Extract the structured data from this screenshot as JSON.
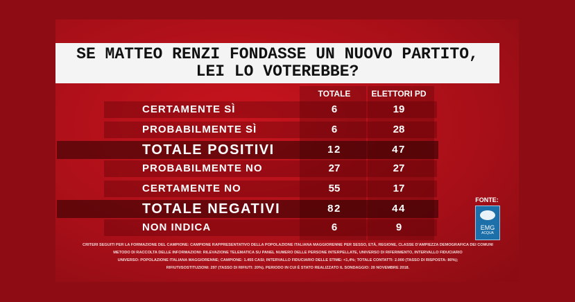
{
  "title": {
    "line1": "SE MATTEO RENZI FONDASSE UN NUOVO PARTITO,",
    "line2": "LEI LO VOTEREBBE?"
  },
  "table": {
    "header": [
      "TOTALE",
      "ELETTORI PD"
    ],
    "rows": [
      [
        "CERTAMENTE SÌ",
        6,
        19
      ],
      [
        "PROBABILMENTE SÌ",
        6,
        28
      ],
      [
        "TOTALE POSITIVI",
        12,
        47
      ],
      [
        "PROBABILMENTE NO",
        27,
        27
      ],
      [
        "CERTAMENTE NO",
        55,
        17
      ],
      [
        "TOTALE NEGATIVI",
        82,
        44
      ],
      [
        "NON INDICA",
        6,
        9
      ]
    ]
  },
  "footnote": [
    "CRITERI SEGUITI PER LA FORMAZIONE DEL CAMPIONE: CAMPIONE RAPPRESENTATIVO DELLA POPOLAZIONE ITALIANA MAGGIORENNE PER SESSO, ETÀ, REGIONE, CLASSE D'AMPIEZZA DEMOGRAFICA DEI COMUNI",
    "METODO DI RACCOLTA DELLE INFORMAZIONI: RILEVAZIONE TELEMATICA SU PANEL NUMERO DELLE PERSONE INTERPELLATE, UNIVERSO DI RIFERIMENTO, INTERVALLO FIDUCIARIO",
    "UNIVERSO: POPOLAZIONE ITALIANA MAGGIORENNE; CAMPIONE: 1.455 CASI; INTERVALLO FIDUCIARIO DELLE STIME: <1,4%; TOTALE CONTATTI: 2.000 (TASSO DI RISPOSTA: 80%);",
    "RIFIUTI/SOSTITUZIONI: 297 (TASSO DI RIFIUTI: 20%). PERIODO IN CUI È STATO REALIZZATO IL SONDAGGIO: 20 NOVEMBRE 2018."
  ],
  "source": {
    "label": "FONTE:",
    "logo": "EMG",
    "logo_sub": "ACQUA"
  }
}
